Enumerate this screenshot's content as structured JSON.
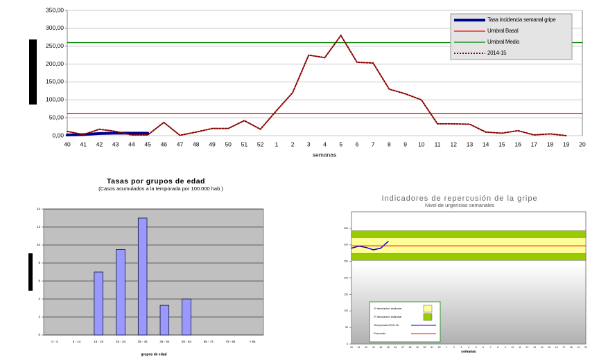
{
  "chart_data": [
    {
      "type": "line",
      "xlabel": "semanas",
      "categories": [
        "40",
        "41",
        "42",
        "43",
        "44",
        "45",
        "46",
        "47",
        "48",
        "49",
        "50",
        "51",
        "52",
        "1",
        "2",
        "3",
        "4",
        "5",
        "6",
        "7",
        "8",
        "9",
        "10",
        "11",
        "12",
        "13",
        "14",
        "15",
        "16",
        "17",
        "18",
        "19",
        "20"
      ],
      "ylim": [
        0,
        350
      ],
      "yticks": [
        {
          "value": 0,
          "label": "0,00"
        },
        {
          "value": 50,
          "label": "50,00"
        },
        {
          "value": 100,
          "label": "100,00"
        },
        {
          "value": 150,
          "label": "150,00"
        },
        {
          "value": 200,
          "label": "200,00"
        },
        {
          "value": 250,
          "label": "250,00"
        },
        {
          "value": 300,
          "label": "300,00"
        },
        {
          "value": 350,
          "label": "350,00"
        }
      ],
      "grid": true,
      "legend": "upper right",
      "series": [
        {
          "name": "Tasa incidencia semanal gripe",
          "color": "#00008b",
          "width": 4,
          "values": [
            2,
            3,
            6,
            7,
            7,
            7,
            null,
            null,
            null,
            null,
            null,
            null,
            null,
            null,
            null,
            null,
            null,
            null,
            null,
            null,
            null,
            null,
            null,
            null,
            null,
            null,
            null,
            null,
            null,
            null,
            null,
            null,
            null
          ]
        },
        {
          "name": "Umbral Basal",
          "color": "#ff0000",
          "width": 1.3,
          "values": [
            62,
            62,
            62,
            62,
            62,
            62,
            62,
            62,
            62,
            62,
            62,
            62,
            62,
            62,
            62,
            62,
            62,
            62,
            62,
            62,
            62,
            62,
            62,
            62,
            62,
            62,
            62,
            62,
            62,
            62,
            62,
            62,
            62
          ]
        },
        {
          "name": "Umbral Medio",
          "color": "#008000",
          "width": 1.3,
          "values": [
            260,
            260,
            260,
            260,
            260,
            260,
            260,
            260,
            260,
            260,
            260,
            260,
            260,
            260,
            260,
            260,
            260,
            260,
            260,
            260,
            260,
            260,
            260,
            260,
            260,
            260,
            260,
            260,
            260,
            260,
            260,
            260,
            260
          ]
        },
        {
          "name": "2014-15",
          "color": "#8b0000",
          "width": 2,
          "dash": "2,2",
          "values": [
            12,
            3,
            18,
            12,
            2,
            2,
            37,
            1,
            10,
            20,
            20,
            42,
            18,
            70,
            120,
            225,
            218,
            280,
            205,
            203,
            130,
            117,
            100,
            33,
            33,
            32,
            10,
            7,
            14,
            2,
            5,
            0,
            null
          ]
        }
      ]
    },
    {
      "type": "bar",
      "title": "Tasas por grupos de edad",
      "subtitle": "(Casos acumulados a la temporada por 100.000 hab.)",
      "xlabel": "grupos de edad",
      "categories": [
        "0 - 4",
        "5 - 14",
        "15 - 24",
        "25 - 34",
        "35 - 44",
        "45 - 54",
        "55 - 64",
        "65 - 74",
        "75 - 84",
        "> 84"
      ],
      "values": [
        0,
        0,
        7,
        9.5,
        13,
        3.3,
        4,
        0,
        0,
        0
      ],
      "color": "#9999ff",
      "ylim": [
        0,
        14
      ],
      "yticks": [
        0,
        2,
        4,
        6,
        8,
        10,
        12,
        14
      ],
      "grid": true
    },
    {
      "type": "line",
      "title": "Indicadores de repercusión de la gripe",
      "subtitle": "Nivel de urgencias semanales",
      "xlabel": "semanas",
      "categories": [
        "40",
        "41",
        "42",
        "43",
        "44",
        "45",
        "46",
        "47",
        "48",
        "49",
        "50",
        "51",
        "52",
        "1",
        "2",
        "3",
        "4",
        "5",
        "6",
        "7",
        "8",
        "9",
        "10",
        "11",
        "12",
        "13",
        "14",
        "15",
        "16",
        "17",
        "18",
        "19",
        "20"
      ],
      "ylim": [
        0,
        400
      ],
      "yticks": [
        0,
        50,
        100,
        150,
        200,
        250,
        300,
        350
      ],
      "grid": false,
      "legend": "lower left",
      "bands": [
        {
          "name": "2ª desviación estándar",
          "color": "#99cc00",
          "range": [
            253,
            343
          ]
        },
        {
          "name": "1ª desviación estándar",
          "color": "#ffff99",
          "range": [
            274,
            322
          ]
        }
      ],
      "series": [
        {
          "name": "Temporada 2015-16",
          "color": "#0000cc",
          "width": 1.5,
          "values": [
            290,
            296,
            292,
            285,
            290,
            310,
            null,
            null,
            null,
            null,
            null,
            null,
            null,
            null,
            null,
            null,
            null,
            null,
            null,
            null,
            null,
            null,
            null,
            null,
            null,
            null,
            null,
            null,
            null,
            null,
            null,
            null,
            null
          ]
        },
        {
          "name": "Promedio",
          "color": "#ff0000",
          "width": 1,
          "values": [
            297,
            297,
            297,
            297,
            297,
            297,
            297,
            297,
            297,
            297,
            297,
            297,
            297,
            297,
            297,
            297,
            297,
            297,
            297,
            297,
            297,
            297,
            297,
            297,
            297,
            297,
            297,
            297,
            297,
            297,
            297,
            297,
            297
          ]
        }
      ]
    }
  ]
}
